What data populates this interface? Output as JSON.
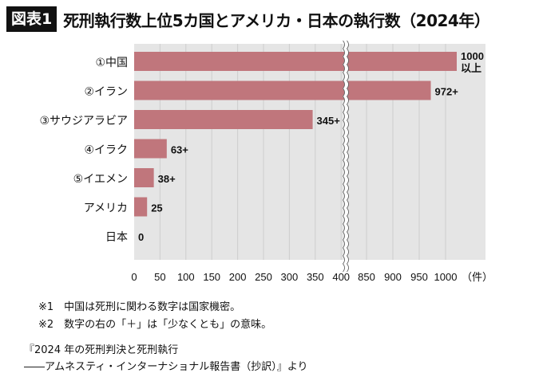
{
  "header": {
    "badge": "図表1",
    "title": "死刑執行数上位5カ国とアメリカ・日本の執行数（2024年）"
  },
  "chart_data": {
    "type": "bar",
    "orientation": "horizontal",
    "categories": [
      "①中国",
      "②イラン",
      "③サウジアラビア",
      "④イラク",
      "⑤イエメン",
      "アメリカ",
      "日本"
    ],
    "values": [
      1000,
      972,
      345,
      63,
      38,
      25,
      0
    ],
    "data_labels": [
      "1000\n以上",
      "972+",
      "345+",
      "63+",
      "38+",
      "25",
      "0"
    ],
    "x_ticks": [
      "0",
      "50",
      "100",
      "150",
      "200",
      "250",
      "300",
      "350",
      "400",
      "850",
      "900",
      "950",
      "1000"
    ],
    "x_unit": "（件）",
    "axis_break": [
      400,
      850
    ],
    "xlim": [
      0,
      1070
    ],
    "grid": true,
    "colors": {
      "bar": "#c0767c",
      "background": "#e5e5e5",
      "grid": "#cdcdcd"
    }
  },
  "notes": [
    "※1　中国は死刑に関わる数字は国家機密。",
    "※2　数字の右の「＋」は「少なくとも」の意味。"
  ],
  "source": [
    "『2024 年の死刑判決と死刑執行",
    "――アムネスティ・インターナショナル報告書（抄訳）』より"
  ]
}
